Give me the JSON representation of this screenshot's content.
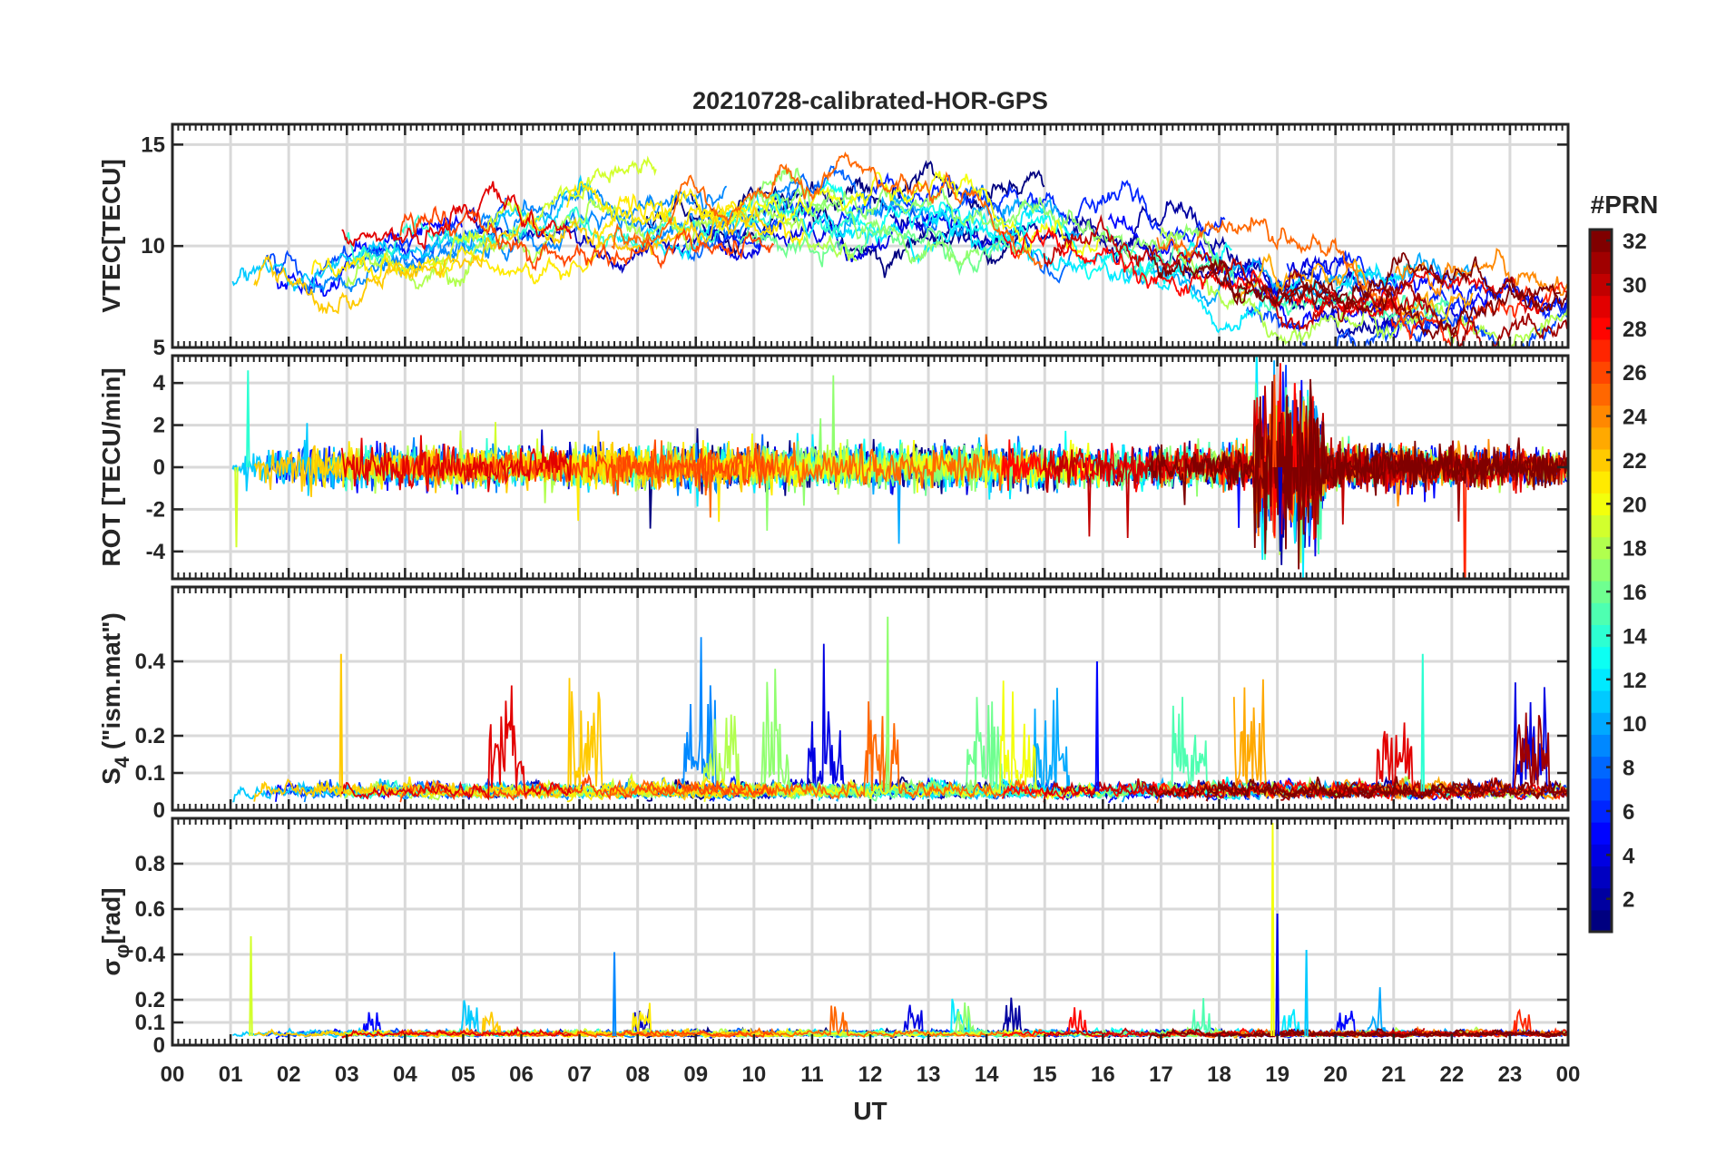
{
  "chart_data": {
    "type": "line",
    "title": "20210728-calibrated-HOR-GPS",
    "xlabel": "UT",
    "x_ticks": [
      "00",
      "01",
      "02",
      "03",
      "04",
      "05",
      "06",
      "07",
      "08",
      "09",
      "10",
      "11",
      "12",
      "13",
      "14",
      "15",
      "16",
      "17",
      "18",
      "19",
      "20",
      "21",
      "22",
      "23",
      "00"
    ],
    "xlim": [
      0,
      24
    ],
    "panels": [
      {
        "id": "vtec",
        "ylabel": "VTEC[TECU]",
        "ylim": [
          5,
          16
        ],
        "y_ticks": [
          5,
          10,
          15
        ],
        "description": "Vertical TEC per satellite, roughly 8-13 TECU during day with peaks near 15 TECU at 13 and 16 UT"
      },
      {
        "id": "rot",
        "ylabel": "ROT [TECU/min]",
        "ylim": [
          -5.3,
          5.3
        ],
        "y_ticks": [
          -4,
          -2,
          0,
          2,
          4
        ],
        "description": "Rate of TEC change, mostly within +/-1, spikes to about +/-4 near 19 UT"
      },
      {
        "id": "s4",
        "ylabel_main": "S",
        "ylabel_sub": "4",
        "ylabel_rest": " (\"ism.mat\")",
        "ylim": [
          0,
          0.6
        ],
        "y_ticks": [
          0,
          0.1,
          0.2,
          0.4
        ],
        "y_tick_labels": [
          "0",
          "0.1",
          "0.2",
          "0.4"
        ],
        "description": "Amplitude scintillation index, background about 0.03-0.1, peaks up to 0.52 near 12.3 UT"
      },
      {
        "id": "sigphi",
        "ylabel_main": "σ",
        "ylabel_sub": "φ",
        "ylabel_rest": "[rad]",
        "ylim": [
          0,
          1
        ],
        "y_ticks": [
          0,
          0.1,
          0.2,
          0.4,
          0.6,
          0.8
        ],
        "y_tick_labels": [
          "0",
          "0.1",
          "0.2",
          "0.4",
          "0.6",
          "0.8"
        ],
        "description": "Phase scintillation index, background about 0.03-0.1, peak near 1.0 at 18.9 UT"
      }
    ],
    "colorbar": {
      "title": "#PRN",
      "range": [
        1,
        32
      ],
      "ticks": [
        2,
        4,
        6,
        8,
        10,
        12,
        14,
        16,
        18,
        20,
        22,
        24,
        26,
        28,
        30,
        32
      ],
      "colormap": "jet"
    },
    "prn_count": 32
  }
}
